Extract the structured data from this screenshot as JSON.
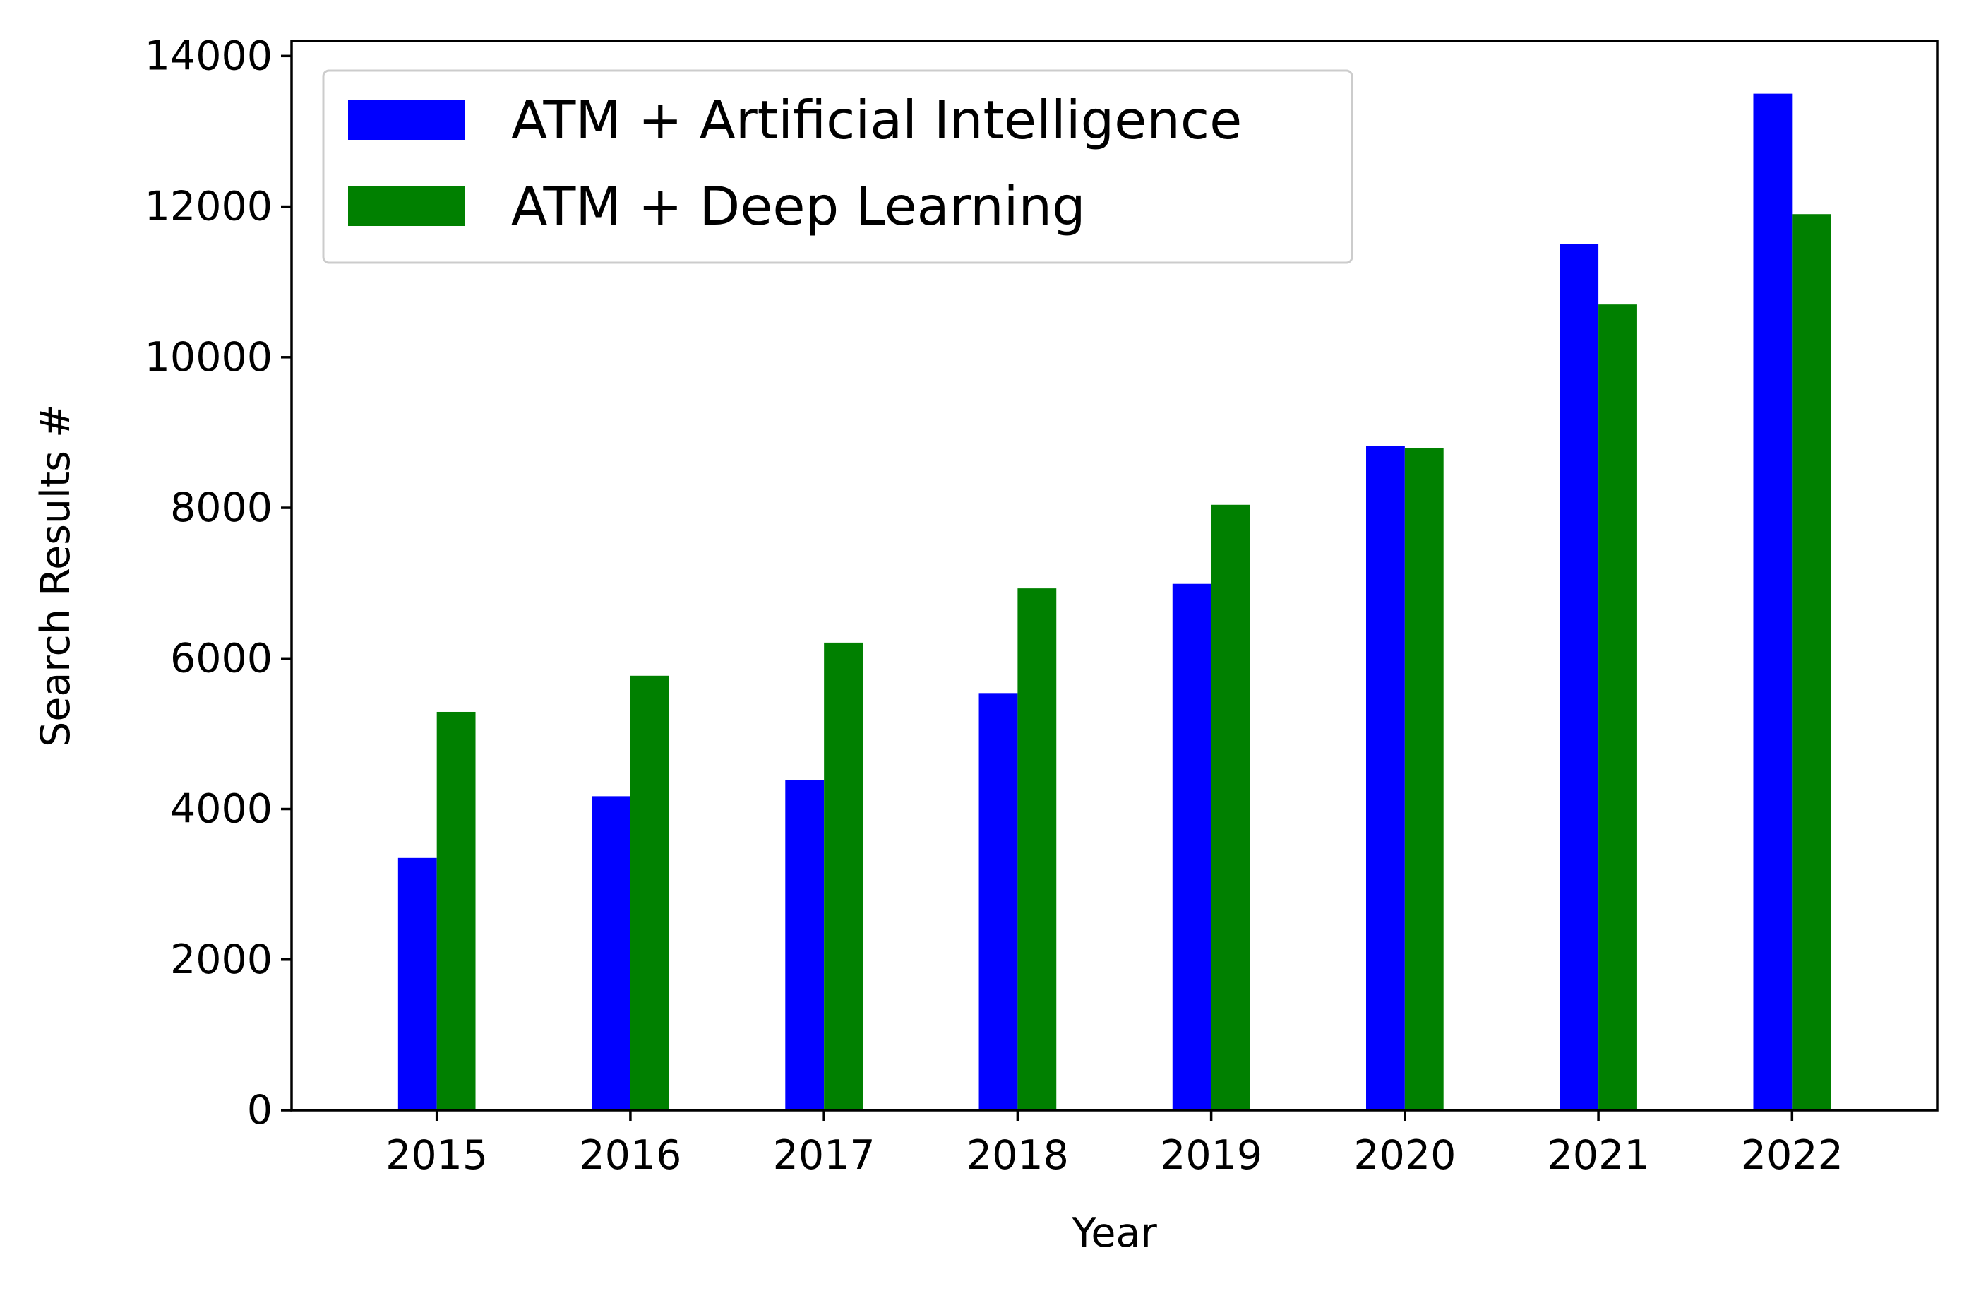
{
  "chart_data": {
    "type": "bar",
    "title": "",
    "xlabel": "Year",
    "ylabel": "Search Results #",
    "categories": [
      "2015",
      "2016",
      "2017",
      "2018",
      "2019",
      "2020",
      "2021",
      "2022"
    ],
    "series": [
      {
        "name": "ATM + Artificial Intelligence",
        "color": "#0000ff",
        "values": [
          3350,
          4170,
          4380,
          5540,
          6990,
          8820,
          11500,
          13500
        ]
      },
      {
        "name": "ATM + Deep Learning",
        "color": "#008000",
        "values": [
          5290,
          5770,
          6210,
          6930,
          8040,
          8790,
          10700,
          11900
        ]
      }
    ],
    "ylim": [
      0,
      14200
    ],
    "yticks": [
      0,
      2000,
      4000,
      6000,
      8000,
      10000,
      12000,
      14000
    ],
    "ytick_labels": [
      "0",
      "2000",
      "4000",
      "6000",
      "8000",
      "10000",
      "12000",
      "14000"
    ],
    "grid": false,
    "legend_position": "top-left"
  }
}
